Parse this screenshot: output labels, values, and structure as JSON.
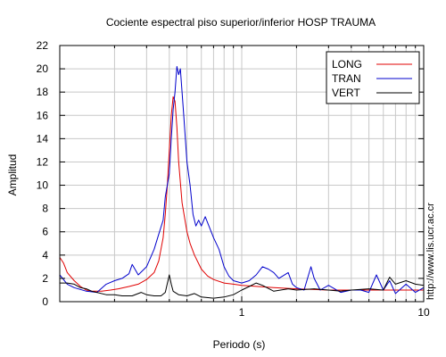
{
  "chart_data": {
    "type": "line",
    "title": "Cociente espectral piso superior/inferior  HOSP TRAUMA",
    "xlabel": "Periodo (s)",
    "ylabel": "Amplitud",
    "x_scale": "log",
    "xlim": [
      0.1,
      10
    ],
    "ylim": [
      0,
      22
    ],
    "x_tick_labels": [
      {
        "value": 1,
        "label": "1"
      },
      {
        "value": 10,
        "label": "10"
      }
    ],
    "y_ticks": [
      0,
      2,
      4,
      6,
      8,
      10,
      12,
      14,
      16,
      18,
      20,
      22
    ],
    "grid": true,
    "legend_position": "top-right",
    "side_text": "http://www.lis.ucr.ac.cr",
    "series": [
      {
        "name": "LONG",
        "color": "#e00000",
        "points": [
          [
            0.1,
            3.8
          ],
          [
            0.105,
            3.3
          ],
          [
            0.11,
            2.5
          ],
          [
            0.12,
            1.8
          ],
          [
            0.13,
            1.3
          ],
          [
            0.14,
            1.0
          ],
          [
            0.15,
            0.9
          ],
          [
            0.17,
            0.9
          ],
          [
            0.19,
            1.0
          ],
          [
            0.21,
            1.1
          ],
          [
            0.24,
            1.3
          ],
          [
            0.27,
            1.5
          ],
          [
            0.3,
            1.9
          ],
          [
            0.33,
            2.5
          ],
          [
            0.35,
            3.5
          ],
          [
            0.37,
            5.5
          ],
          [
            0.38,
            7.5
          ],
          [
            0.39,
            10.0
          ],
          [
            0.4,
            13.0
          ],
          [
            0.41,
            16.0
          ],
          [
            0.42,
            17.6
          ],
          [
            0.43,
            17.2
          ],
          [
            0.44,
            15.0
          ],
          [
            0.45,
            12.0
          ],
          [
            0.47,
            8.5
          ],
          [
            0.5,
            6.0
          ],
          [
            0.52,
            5.0
          ],
          [
            0.55,
            4.0
          ],
          [
            0.6,
            2.8
          ],
          [
            0.65,
            2.2
          ],
          [
            0.7,
            1.9
          ],
          [
            0.8,
            1.6
          ],
          [
            0.9,
            1.5
          ],
          [
            1.0,
            1.4
          ],
          [
            1.5,
            1.2
          ],
          [
            2.0,
            1.1
          ],
          [
            3.0,
            1.0
          ],
          [
            5.0,
            1.0
          ],
          [
            10.0,
            1.0
          ]
        ]
      },
      {
        "name": "TRAN",
        "color": "#0000cc",
        "points": [
          [
            0.1,
            2.3
          ],
          [
            0.11,
            1.5
          ],
          [
            0.12,
            1.2
          ],
          [
            0.14,
            0.9
          ],
          [
            0.16,
            0.8
          ],
          [
            0.18,
            1.5
          ],
          [
            0.2,
            1.8
          ],
          [
            0.22,
            2.0
          ],
          [
            0.24,
            2.4
          ],
          [
            0.25,
            3.2
          ],
          [
            0.27,
            2.3
          ],
          [
            0.3,
            3.0
          ],
          [
            0.33,
            4.5
          ],
          [
            0.35,
            5.8
          ],
          [
            0.37,
            7.0
          ],
          [
            0.38,
            9.0
          ],
          [
            0.4,
            11.0
          ],
          [
            0.41,
            14.0
          ],
          [
            0.42,
            16.5
          ],
          [
            0.43,
            18.0
          ],
          [
            0.44,
            20.2
          ],
          [
            0.45,
            19.5
          ],
          [
            0.46,
            20.0
          ],
          [
            0.47,
            18.0
          ],
          [
            0.48,
            16.0
          ],
          [
            0.5,
            12.0
          ],
          [
            0.52,
            10.0
          ],
          [
            0.54,
            7.5
          ],
          [
            0.56,
            6.5
          ],
          [
            0.58,
            7.0
          ],
          [
            0.6,
            6.5
          ],
          [
            0.63,
            7.3
          ],
          [
            0.66,
            6.5
          ],
          [
            0.7,
            5.5
          ],
          [
            0.75,
            4.5
          ],
          [
            0.8,
            3.0
          ],
          [
            0.85,
            2.2
          ],
          [
            0.9,
            1.8
          ],
          [
            1.0,
            1.6
          ],
          [
            1.1,
            1.8
          ],
          [
            1.2,
            2.3
          ],
          [
            1.3,
            3.0
          ],
          [
            1.4,
            2.8
          ],
          [
            1.5,
            2.5
          ],
          [
            1.6,
            2.0
          ],
          [
            1.8,
            2.5
          ],
          [
            1.9,
            1.5
          ],
          [
            2.0,
            1.2
          ],
          [
            2.2,
            1.0
          ],
          [
            2.4,
            3.0
          ],
          [
            2.5,
            2.0
          ],
          [
            2.7,
            1.0
          ],
          [
            3.0,
            1.4
          ],
          [
            3.5,
            0.8
          ],
          [
            4.0,
            1.0
          ],
          [
            4.5,
            1.0
          ],
          [
            5.0,
            0.8
          ],
          [
            5.5,
            2.3
          ],
          [
            6.0,
            1.0
          ],
          [
            6.5,
            1.8
          ],
          [
            7.0,
            0.7
          ],
          [
            8.0,
            1.5
          ],
          [
            9.0,
            0.8
          ],
          [
            10.0,
            1.2
          ]
        ]
      },
      {
        "name": "VERT",
        "color": "#000000",
        "points": [
          [
            0.1,
            1.6
          ],
          [
            0.11,
            1.6
          ],
          [
            0.12,
            1.5
          ],
          [
            0.13,
            1.2
          ],
          [
            0.14,
            1.1
          ],
          [
            0.15,
            0.9
          ],
          [
            0.16,
            0.8
          ],
          [
            0.18,
            0.6
          ],
          [
            0.2,
            0.6
          ],
          [
            0.22,
            0.5
          ],
          [
            0.25,
            0.5
          ],
          [
            0.28,
            0.8
          ],
          [
            0.3,
            0.6
          ],
          [
            0.33,
            0.5
          ],
          [
            0.36,
            0.5
          ],
          [
            0.38,
            0.8
          ],
          [
            0.4,
            2.3
          ],
          [
            0.41,
            1.5
          ],
          [
            0.42,
            0.9
          ],
          [
            0.45,
            0.6
          ],
          [
            0.5,
            0.5
          ],
          [
            0.55,
            0.7
          ],
          [
            0.6,
            0.4
          ],
          [
            0.7,
            0.3
          ],
          [
            0.8,
            0.4
          ],
          [
            0.9,
            0.6
          ],
          [
            1.0,
            1.0
          ],
          [
            1.1,
            1.3
          ],
          [
            1.2,
            1.6
          ],
          [
            1.3,
            1.4
          ],
          [
            1.5,
            0.9
          ],
          [
            1.8,
            1.1
          ],
          [
            2.0,
            1.0
          ],
          [
            2.5,
            1.1
          ],
          [
            3.0,
            1.0
          ],
          [
            3.5,
            0.9
          ],
          [
            4.0,
            1.0
          ],
          [
            5.0,
            1.1
          ],
          [
            6.0,
            1.0
          ],
          [
            6.5,
            2.1
          ],
          [
            7.0,
            1.5
          ],
          [
            8.0,
            1.8
          ],
          [
            9.0,
            1.5
          ],
          [
            10.0,
            1.4
          ]
        ]
      }
    ]
  }
}
